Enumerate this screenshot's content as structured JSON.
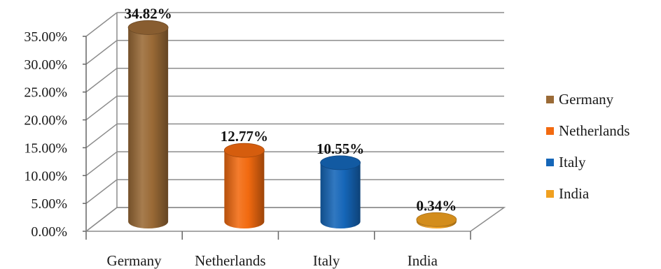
{
  "chart_data": {
    "type": "bar",
    "categories": [
      "Germany",
      "Netherlands",
      "Italy",
      "India"
    ],
    "values": [
      34.82,
      12.77,
      10.55,
      0.34
    ],
    "data_labels": [
      "34.82%",
      "12.77%",
      "10.55%",
      "0.34%"
    ],
    "y_ticks": [
      "0.00%",
      "5.00%",
      "10.00%",
      "15.00%",
      "20.00%",
      "25.00%",
      "30.00%",
      "35.00%"
    ],
    "ylim": [
      0,
      35
    ],
    "title": "",
    "xlabel": "",
    "ylabel": "",
    "grid": true,
    "legend_position": "right",
    "style": "3d-cylinder",
    "colors": {
      "Germany": "#9a6a36",
      "Netherlands": "#f26a10",
      "Italy": "#1566b8",
      "India": "#f0a020"
    }
  },
  "legend": {
    "items": [
      {
        "label": "Germany",
        "color": "#9a6a36"
      },
      {
        "label": "Netherlands",
        "color": "#f26a10"
      },
      {
        "label": "Italy",
        "color": "#1566b8"
      },
      {
        "label": "India",
        "color": "#f0a020"
      }
    ]
  }
}
